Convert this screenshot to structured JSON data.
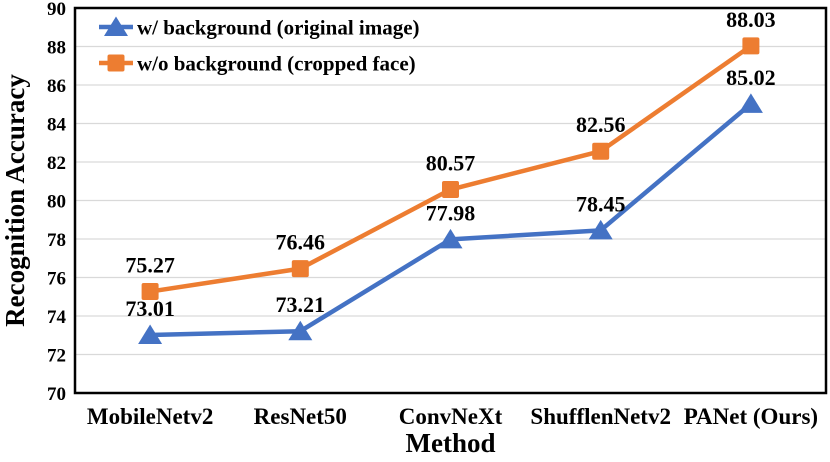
{
  "chart_data": {
    "type": "line",
    "title": "",
    "xlabel": "Method",
    "ylabel": "Recognition Accuracy",
    "categories": [
      "MobileNetv2",
      "ResNet50",
      "ConvNeXt",
      "ShufflenNetv2",
      "PANet (Ours)"
    ],
    "series": [
      {
        "name": "w/ background (original image)",
        "marker": "triangle",
        "color": "#4472C4",
        "values": [
          73.01,
          73.21,
          77.98,
          78.45,
          85.02
        ],
        "data_labels": [
          "73.01",
          "73.21",
          "77.98",
          "78.45",
          "85.02"
        ]
      },
      {
        "name": "w/o background (cropped face)",
        "marker": "square",
        "color": "#ED7D31",
        "values": [
          75.27,
          76.46,
          80.57,
          82.56,
          88.03
        ],
        "data_labels": [
          "75.27",
          "76.46",
          "80.57",
          "82.56",
          "88.03"
        ]
      }
    ],
    "ylim": [
      70,
      90
    ],
    "ytick_step": 2,
    "ytick_labels": [
      "70",
      "72",
      "74",
      "76",
      "78",
      "80",
      "82",
      "84",
      "86",
      "88",
      "90"
    ],
    "grid": "horizontal",
    "gridline_color": "#d9d9d9",
    "axis_color": "#000000",
    "background_color": "#ffffff",
    "legend_position": "top-left-inside",
    "data_labels_shown": true
  }
}
